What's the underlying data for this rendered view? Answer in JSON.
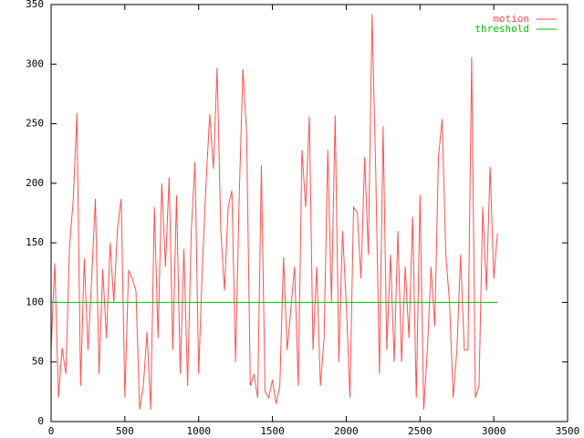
{
  "chart_data": {
    "type": "line",
    "xlim": [
      0,
      3500
    ],
    "xticks": [
      0,
      500,
      1000,
      1500,
      2000,
      2500,
      3000,
      3500
    ],
    "ylim": [
      0,
      350
    ],
    "yticks": [
      0,
      50,
      100,
      150,
      200,
      250,
      300,
      350
    ],
    "legend": "top-right",
    "series": [
      {
        "name": "motion",
        "color": "#ff5050",
        "x": [
          0,
          25,
          50,
          75,
          100,
          125,
          150,
          175,
          200,
          225,
          250,
          275,
          300,
          325,
          350,
          375,
          400,
          425,
          450,
          475,
          500,
          525,
          550,
          575,
          600,
          625,
          650,
          675,
          700,
          725,
          750,
          775,
          800,
          825,
          850,
          875,
          900,
          925,
          950,
          975,
          1000,
          1025,
          1050,
          1075,
          1100,
          1125,
          1150,
          1175,
          1200,
          1225,
          1250,
          1275,
          1300,
          1325,
          1350,
          1375,
          1400,
          1425,
          1450,
          1475,
          1500,
          1525,
          1550,
          1575,
          1600,
          1625,
          1650,
          1675,
          1700,
          1725,
          1750,
          1775,
          1800,
          1825,
          1850,
          1875,
          1900,
          1925,
          1950,
          1975,
          2000,
          2025,
          2050,
          2075,
          2100,
          2125,
          2150,
          2175,
          2200,
          2225,
          2250,
          2275,
          2300,
          2325,
          2350,
          2375,
          2400,
          2425,
          2450,
          2475,
          2500,
          2525,
          2550,
          2575,
          2600,
          2625,
          2650,
          2675,
          2700,
          2725,
          2750,
          2775,
          2800,
          2825,
          2850,
          2875,
          2900,
          2925,
          2950,
          2975,
          3000,
          3025
        ],
        "values": [
          60,
          133,
          20,
          62,
          40,
          147,
          186,
          259,
          30,
          137,
          60,
          120,
          187,
          40,
          128,
          70,
          150,
          100,
          162,
          187,
          20,
          127,
          120,
          110,
          10,
          30,
          75,
          10,
          180,
          70,
          200,
          130,
          205,
          60,
          190,
          40,
          145,
          30,
          160,
          218,
          40,
          130,
          200,
          258,
          212,
          297,
          160,
          110,
          180,
          194,
          50,
          190,
          296,
          243,
          30,
          40,
          20,
          215,
          25,
          20,
          35,
          15,
          30,
          138,
          60,
          95,
          130,
          30,
          228,
          180,
          256,
          60,
          130,
          30,
          70,
          228,
          100,
          257,
          50,
          160,
          100,
          20,
          180,
          175,
          120,
          222,
          140,
          342,
          210,
          40,
          248,
          60,
          140,
          50,
          160,
          50,
          130,
          70,
          172,
          20,
          190,
          10,
          60,
          130,
          80,
          222,
          254,
          140,
          100,
          20,
          60,
          140,
          60,
          60,
          306,
          20,
          30,
          180,
          110,
          214,
          120,
          158
        ]
      },
      {
        "name": "threshold",
        "color": "#00c000",
        "x": [
          0,
          3025
        ],
        "values": [
          100,
          100
        ]
      }
    ]
  }
}
